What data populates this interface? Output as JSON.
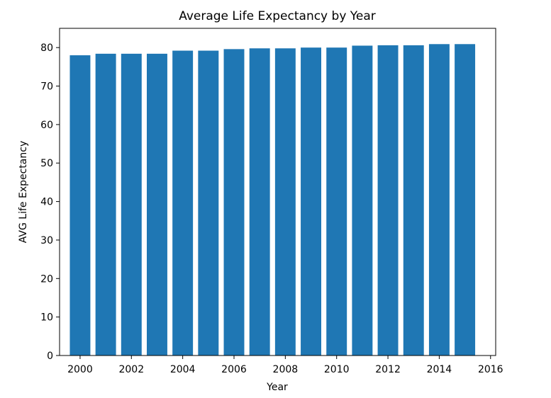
{
  "chart_data": {
    "type": "bar",
    "title": "Average Life Expectancy by Year",
    "xlabel": "Year",
    "ylabel": "AVG Life Expectancy",
    "x": [
      2000,
      2001,
      2002,
      2003,
      2004,
      2005,
      2006,
      2007,
      2008,
      2009,
      2010,
      2011,
      2012,
      2013,
      2014,
      2015
    ],
    "values": [
      78.0,
      78.4,
      78.4,
      78.4,
      79.2,
      79.2,
      79.6,
      79.8,
      79.8,
      80.0,
      80.0,
      80.5,
      80.6,
      80.6,
      80.9,
      80.9
    ],
    "xlim": [
      1999.2,
      2016.2
    ],
    "ylim": [
      0,
      85
    ],
    "xticks": [
      2000,
      2002,
      2004,
      2006,
      2008,
      2010,
      2012,
      2014,
      2016
    ],
    "yticks": [
      0,
      10,
      20,
      30,
      40,
      50,
      60,
      70,
      80
    ],
    "bar_color": "#1f77b4",
    "grid": false,
    "legend": "none"
  }
}
